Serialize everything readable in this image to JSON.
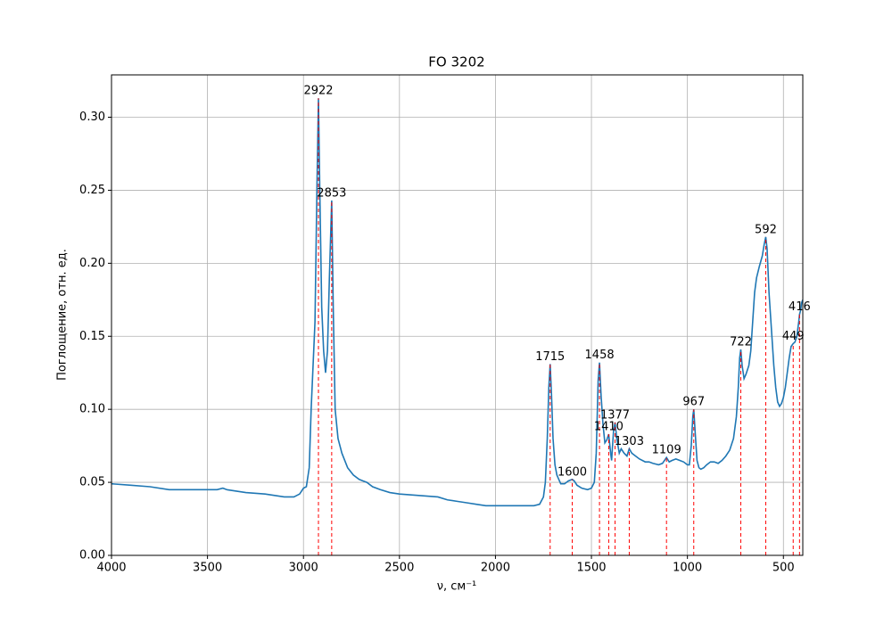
{
  "chart_data": {
    "type": "line",
    "title": "FO 3202",
    "xlabel": "ν, см⁻¹",
    "ylabel": "Поглощение, отн. ед.",
    "color": "#1f77b4",
    "grid": true,
    "xlim": [
      4000,
      399
    ],
    "ylim": [
      0,
      0.329
    ],
    "xticks": [
      4000,
      3500,
      3000,
      2500,
      2000,
      1500,
      1000,
      500
    ],
    "yticks": [
      {
        "value": 0,
        "label": "0.00"
      },
      {
        "value": 0.05,
        "label": "0.05"
      },
      {
        "value": 0.1,
        "label": "0.10"
      },
      {
        "value": 0.15,
        "label": "0.15"
      },
      {
        "value": 0.2,
        "label": "0.20"
      },
      {
        "value": 0.25,
        "label": "0.25"
      },
      {
        "value": 0.3,
        "label": "0.30"
      }
    ],
    "x": [
      4000,
      3900,
      3800,
      3700,
      3600,
      3500,
      3450,
      3420,
      3400,
      3300,
      3200,
      3100,
      3050,
      3020,
      3000,
      2985,
      2970,
      2960,
      2950,
      2940,
      2930,
      2922,
      2915,
      2905,
      2895,
      2885,
      2875,
      2865,
      2853,
      2845,
      2835,
      2820,
      2800,
      2770,
      2740,
      2710,
      2690,
      2670,
      2640,
      2600,
      2550,
      2500,
      2400,
      2300,
      2250,
      2200,
      2150,
      2100,
      2050,
      2000,
      1950,
      1900,
      1850,
      1800,
      1770,
      1750,
      1740,
      1730,
      1722,
      1715,
      1708,
      1700,
      1690,
      1680,
      1660,
      1640,
      1620,
      1600,
      1590,
      1575,
      1550,
      1520,
      1500,
      1485,
      1475,
      1465,
      1458,
      1450,
      1440,
      1430,
      1420,
      1410,
      1400,
      1395,
      1385,
      1377,
      1368,
      1355,
      1345,
      1330,
      1315,
      1303,
      1290,
      1270,
      1250,
      1220,
      1200,
      1180,
      1150,
      1130,
      1109,
      1095,
      1080,
      1060,
      1040,
      1020,
      1000,
      990,
      980,
      972,
      967,
      960,
      950,
      940,
      930,
      915,
      900,
      880,
      860,
      840,
      820,
      800,
      780,
      760,
      745,
      735,
      728,
      722,
      715,
      705,
      695,
      680,
      670,
      660,
      650,
      640,
      625,
      610,
      600,
      592,
      585,
      575,
      560,
      550,
      540,
      530,
      520,
      510,
      500,
      490,
      480,
      470,
      460,
      449,
      440,
      430,
      420,
      416,
      410,
      405,
      399
    ],
    "values": [
      0.049,
      0.048,
      0.047,
      0.045,
      0.045,
      0.045,
      0.045,
      0.046,
      0.045,
      0.043,
      0.042,
      0.04,
      0.04,
      0.042,
      0.046,
      0.047,
      0.06,
      0.1,
      0.13,
      0.16,
      0.25,
      0.313,
      0.25,
      0.17,
      0.14,
      0.125,
      0.14,
      0.19,
      0.243,
      0.17,
      0.1,
      0.08,
      0.07,
      0.06,
      0.055,
      0.052,
      0.051,
      0.05,
      0.047,
      0.045,
      0.043,
      0.042,
      0.041,
      0.04,
      0.038,
      0.037,
      0.036,
      0.035,
      0.034,
      0.034,
      0.034,
      0.034,
      0.034,
      0.034,
      0.035,
      0.04,
      0.05,
      0.08,
      0.115,
      0.131,
      0.11,
      0.08,
      0.062,
      0.055,
      0.049,
      0.049,
      0.051,
      0.052,
      0.051,
      0.048,
      0.046,
      0.045,
      0.046,
      0.05,
      0.07,
      0.12,
      0.132,
      0.11,
      0.09,
      0.077,
      0.079,
      0.083,
      0.07,
      0.065,
      0.085,
      0.091,
      0.08,
      0.07,
      0.073,
      0.07,
      0.068,
      0.073,
      0.07,
      0.068,
      0.066,
      0.064,
      0.064,
      0.063,
      0.062,
      0.063,
      0.067,
      0.064,
      0.065,
      0.066,
      0.065,
      0.064,
      0.062,
      0.062,
      0.075,
      0.095,
      0.1,
      0.085,
      0.065,
      0.06,
      0.059,
      0.06,
      0.062,
      0.064,
      0.064,
      0.063,
      0.065,
      0.068,
      0.072,
      0.08,
      0.095,
      0.115,
      0.135,
      0.141,
      0.13,
      0.121,
      0.124,
      0.13,
      0.14,
      0.16,
      0.18,
      0.19,
      0.198,
      0.205,
      0.213,
      0.218,
      0.21,
      0.18,
      0.15,
      0.13,
      0.115,
      0.105,
      0.102,
      0.104,
      0.108,
      0.115,
      0.125,
      0.135,
      0.143,
      0.145,
      0.146,
      0.15,
      0.16,
      0.165,
      0.168,
      0.173,
      0.175
    ],
    "peaks": {
      "color": "#ff0000",
      "x": [
        2922,
        2853,
        1715,
        1600,
        1458,
        1410,
        1377,
        1303,
        1109,
        967,
        722,
        592,
        449,
        416
      ],
      "y": [
        0.313,
        0.243,
        0.131,
        0.052,
        0.132,
        0.083,
        0.091,
        0.073,
        0.067,
        0.1,
        0.141,
        0.218,
        0.145,
        0.165
      ]
    }
  }
}
